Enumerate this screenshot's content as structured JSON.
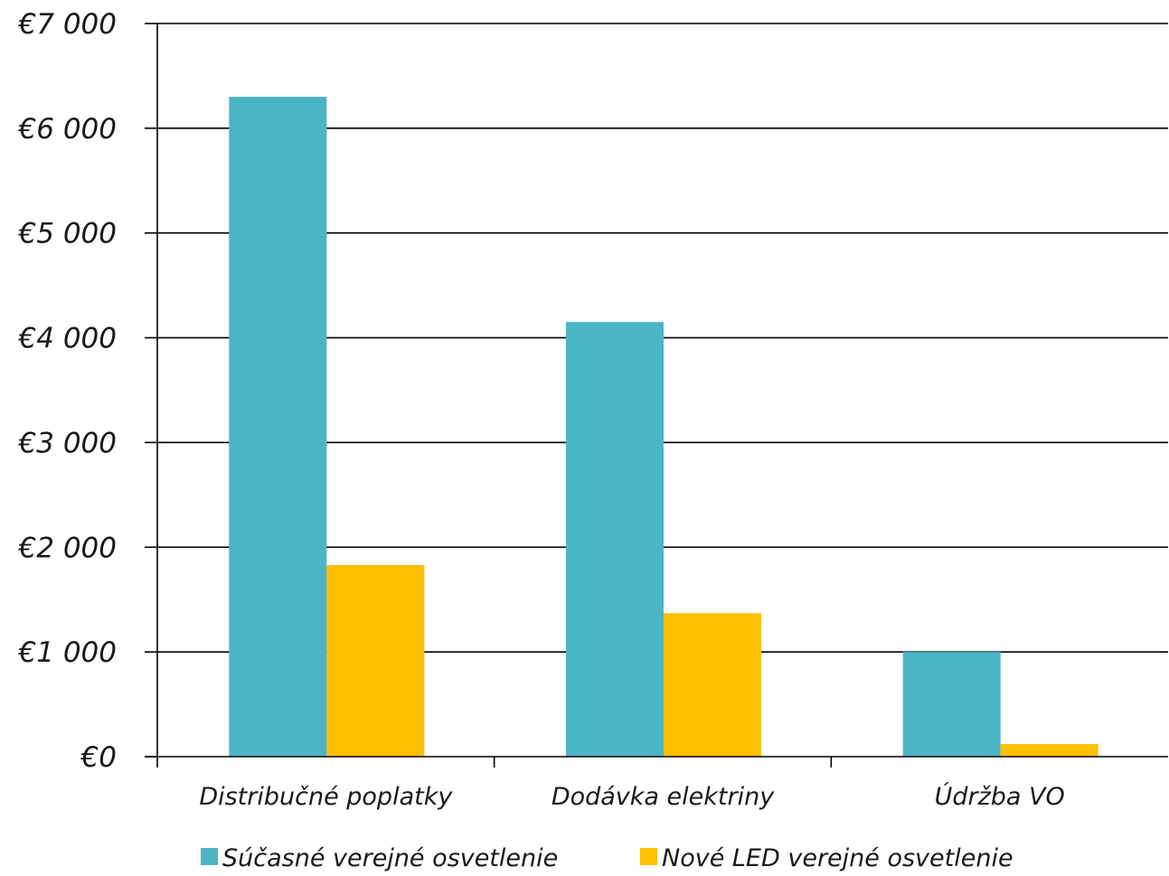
{
  "chart_data": {
    "type": "bar",
    "title": "",
    "xlabel": "",
    "ylabel": "",
    "categories": [
      "Distribučné poplatky",
      "Dodávka elektriny",
      "Údržba VO"
    ],
    "series": [
      {
        "name": "Súčasné verejné osvetlenie",
        "color": "#4BB5C5",
        "values": [
          6300,
          4150,
          1000
        ]
      },
      {
        "name": "Nové LED verejné osvetlenie",
        "color": "#FFC000",
        "values": [
          1830,
          1370,
          120
        ]
      }
    ],
    "ylim": [
      0,
      7000
    ],
    "yticks": [
      0,
      1000,
      2000,
      3000,
      4000,
      5000,
      6000,
      7000
    ],
    "ytick_labels": [
      "€0",
      "€1 000",
      "€2 000",
      "€3 000",
      "€4 000",
      "€5 000",
      "€6 000",
      "€7 000"
    ],
    "grid": true,
    "legend_position": "bottom"
  }
}
